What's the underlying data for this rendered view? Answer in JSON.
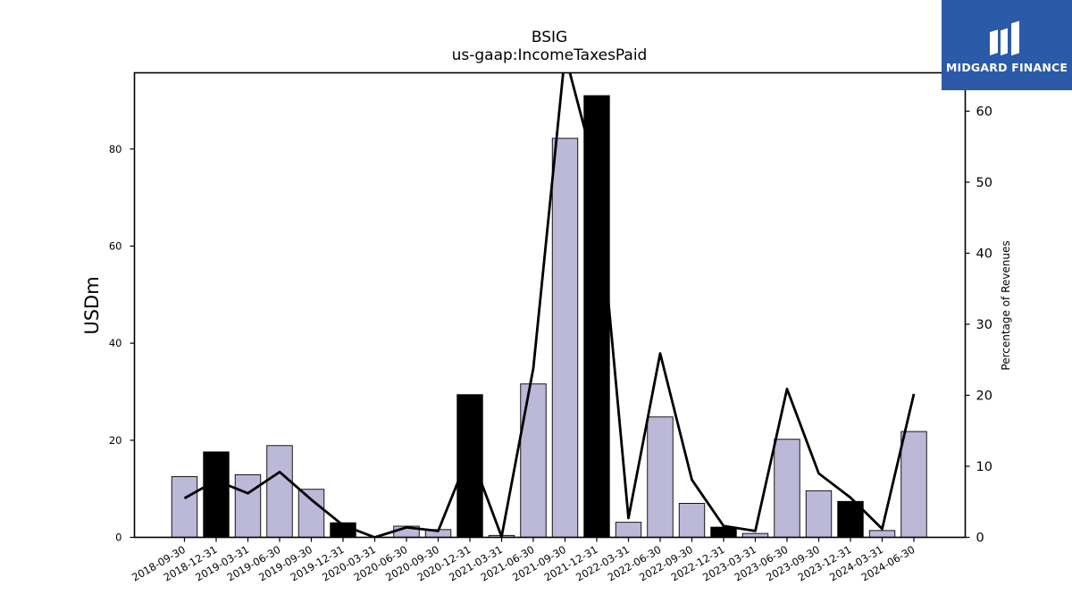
{
  "chart_data": {
    "type": "bar",
    "title": "BSIG",
    "subtitle": "us-gaap:IncomeTaxesPaid",
    "ylabel": "USDm",
    "y2label": "Percentage of Revenues",
    "ylim": [
      0,
      95.7
    ],
    "y2lim": [
      0,
      65.4
    ],
    "yticks": [
      0,
      20,
      40,
      60,
      80
    ],
    "y2ticks": [
      0,
      10,
      20,
      30,
      40,
      50,
      60
    ],
    "categories": [
      "2018-09-30",
      "2018-12-31",
      "2019-03-31",
      "2019-06-30",
      "2019-09-30",
      "2019-12-31",
      "2020-03-31",
      "2020-06-30",
      "2020-09-30",
      "2020-12-31",
      "2021-03-31",
      "2021-06-30",
      "2021-09-30",
      "2021-12-31",
      "2022-03-31",
      "2022-06-30",
      "2022-09-30",
      "2022-12-31",
      "2023-03-31",
      "2023-06-30",
      "2023-09-30",
      "2023-12-31",
      "2024-03-31",
      "2024-06-30"
    ],
    "series": [
      {
        "values": [
          12.5,
          17.6,
          12.9,
          18.9,
          9.9,
          3.0,
          0.0,
          2.3,
          1.6,
          29.4,
          0.4,
          31.6,
          82.2,
          91.0,
          3.1,
          24.8,
          7.0,
          2.1,
          0.8,
          20.2,
          9.6,
          7.4,
          1.4,
          21.8
        ],
        "highlight": [
          false,
          true,
          false,
          false,
          false,
          true,
          false,
          false,
          false,
          true,
          false,
          false,
          false,
          true,
          false,
          false,
          false,
          true,
          false,
          false,
          false,
          true,
          false,
          false
        ]
      },
      {
        "axis": "right",
        "values": [
          5.5,
          8.0,
          6.2,
          9.2,
          5.3,
          1.7,
          0.0,
          1.4,
          0.9,
          12.0,
          0.1,
          23.8,
          68.0,
          51.0,
          2.7,
          25.9,
          8.1,
          1.6,
          0.9,
          20.9,
          9.0,
          5.6,
          1.2,
          20.2
        ]
      }
    ],
    "colors": {
      "bar": "#bcb8d8",
      "bar_highlight": "#000000",
      "line": "#000000"
    },
    "grid": false,
    "legend": "none"
  },
  "logo": {
    "text": "MIDGARD FINANCE",
    "background": "#2b5aa8"
  }
}
